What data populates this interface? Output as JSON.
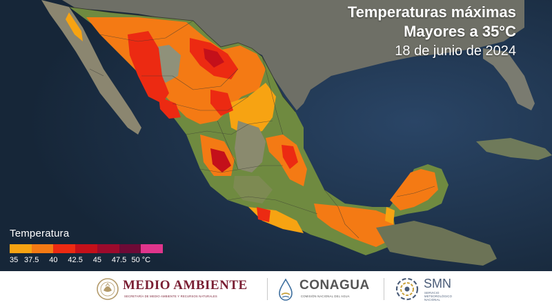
{
  "title": {
    "line1": "Temperaturas máximas",
    "line2": "Mayores a 35°C",
    "date": "18 de junio de 2024"
  },
  "legend": {
    "title": "Temperatura",
    "swatches": [
      "#f7a312",
      "#f47a14",
      "#ec2a12",
      "#c4101a",
      "#9c0a2c",
      "#6e0a36",
      "#e0358c"
    ],
    "ticks": [
      "35",
      "37.5",
      "40",
      "42.5",
      "45",
      "47.5",
      "50 °C"
    ]
  },
  "colors": {
    "ocean": "#1f3148",
    "land": "#8f917a",
    "green_land": "#6f8a40",
    "orange": "#f47a14",
    "light_orange": "#f7a312",
    "red": "#ec2a12",
    "dark_red": "#c4101a"
  },
  "footer": {
    "medio_ambiente": {
      "name": "MEDIO AMBIENTE",
      "subtitle": "SECRETARÍA DE MEDIO AMBIENTE Y RECURSOS NATURALES",
      "color": "#7a1e33",
      "icon": "coat-of-arms-icon"
    },
    "conagua": {
      "name": "CONAGUA",
      "subtitle": "COMISIÓN NACIONAL DEL AGUA",
      "color": "#555555",
      "icon": "water-drop-icon"
    },
    "smn": {
      "name": "SMN",
      "subtitle_line1": "SERVICIO",
      "subtitle_line2": "METEOROLÓGICO",
      "subtitle_line3": "NACIONAL",
      "color": "#4a5c78",
      "icon": "weather-spiral-icon"
    }
  }
}
